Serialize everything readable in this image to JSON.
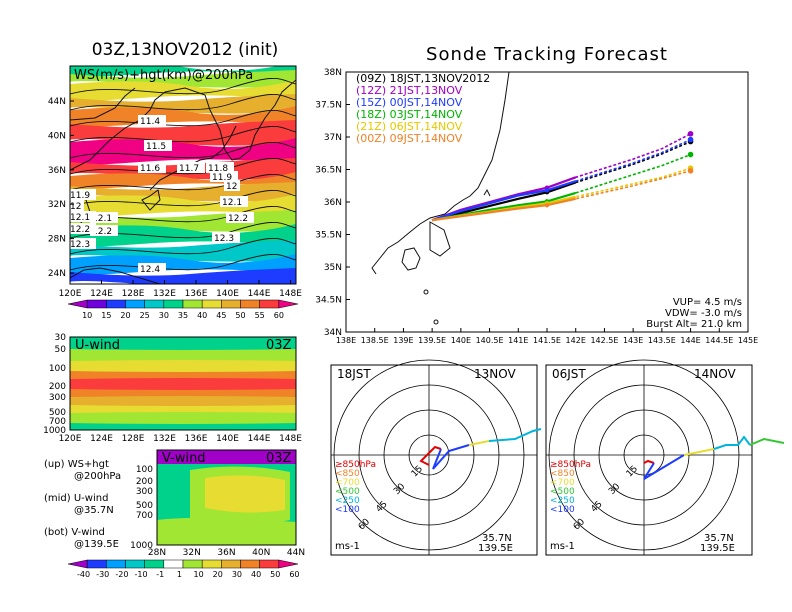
{
  "left": {
    "main_title": "03Z,13NOV2012 (init)",
    "map_label": "WS(m/s)+hgt(km)@200hPa",
    "lat_ticks": [
      "44N",
      "40N",
      "36N",
      "32N",
      "28N",
      "24N"
    ],
    "lon_ticks": [
      "120E",
      "124E",
      "128E",
      "132E",
      "136E",
      "140E",
      "144E",
      "148E"
    ],
    "contour_labels": [
      "11.4",
      "11.5",
      "11.6",
      "11.7",
      "11.8",
      "11.9",
      "12",
      "12.1",
      "12.1",
      "12.2",
      "12.2",
      "12.3",
      "12.4",
      "11.9",
      "12",
      "12.1",
      "12.2",
      "12.3"
    ],
    "ws_colorbar": [
      "10",
      "15",
      "20",
      "25",
      "30",
      "35",
      "40",
      "45",
      "50",
      "55",
      "60"
    ],
    "ws_colors": [
      "#a000c8",
      "#6e00dc",
      "#1e3cff",
      "#00a0ff",
      "#00c8c8",
      "#00d28c",
      "#a0e632",
      "#e6dc32",
      "#e6af2d",
      "#f08228",
      "#fa3c3c",
      "#f00082"
    ],
    "u_wind": {
      "label": "U-wind",
      "time": "03Z",
      "levels": [
        "30",
        "50",
        "100",
        "200",
        "300",
        "500",
        "700",
        "1000"
      ]
    },
    "v_wind": {
      "label": "V-wind",
      "time": "03Z",
      "levels": [
        "100",
        "200",
        "300",
        "500",
        "700",
        "1000"
      ],
      "lat_ticks": [
        "28N",
        "32N",
        "36N",
        "40N",
        "44N"
      ]
    },
    "legend_lines": [
      {
        "key": "(up)",
        "text": "WS+hgt",
        "sub": "@200hPa"
      },
      {
        "key": "(mid)",
        "text": "U-wind",
        "sub": "@35.7N"
      },
      {
        "key": "(bot)",
        "text": "V-wind",
        "sub": "@139.5E"
      }
    ],
    "wind_colorbar": [
      "-40",
      "-30",
      "-20",
      "-10",
      "-1",
      "1",
      "10",
      "20",
      "30",
      "40",
      "50",
      "60"
    ],
    "wind_colors": [
      "#a000c8",
      "#1e3cff",
      "#00a0ff",
      "#00c8c8",
      "#00d28c",
      "#ffffff",
      "#a0e632",
      "#e6dc32",
      "#e6af2d",
      "#f08228",
      "#fa3c3c",
      "#f00082"
    ]
  },
  "right": {
    "title": "Sonde Tracking Forecast",
    "lat_ticks": [
      "38N",
      "37.5N",
      "37N",
      "36.5N",
      "36N",
      "35.5N",
      "35N",
      "34.5N",
      "34N"
    ],
    "lon_ticks": [
      "138E",
      "138.5E",
      "139E",
      "139.5E",
      "140E",
      "140.5E",
      "141E",
      "141.5E",
      "142E",
      "142.5E",
      "143E",
      "143.5E",
      "144E",
      "144.5E",
      "145E"
    ],
    "legend": [
      {
        "utc": "(09Z)",
        "jst": "18JST,13NOV2012",
        "color": "#000000"
      },
      {
        "utc": "(12Z)",
        "jst": "21JST,13NOV",
        "color": "#a000c8"
      },
      {
        "utc": "(15Z)",
        "jst": "00JST,14NOV",
        "color": "#1e3cff"
      },
      {
        "utc": "(18Z)",
        "jst": "03JST,14NOV",
        "color": "#00b400"
      },
      {
        "utc": "(21Z)",
        "jst": "06JST,14NOV",
        "color": "#e6c800"
      },
      {
        "utc": "(00Z)",
        "jst": "09JST,14NOV",
        "color": "#f08228"
      }
    ],
    "params": [
      "VUP=  4.5 m/s",
      "VDW= -3.0 m/s",
      "Burst Alt= 21.0 km"
    ]
  },
  "hodographs": [
    {
      "time": "18JST",
      "date": "13NOV",
      "loc1": "35.7N",
      "loc2": "139.5E",
      "unit": "ms-1",
      "ring_labels": [
        "15",
        "30",
        "45",
        "60"
      ]
    },
    {
      "time": "06JST",
      "date": "14NOV",
      "loc1": "35.7N",
      "loc2": "139.5E",
      "unit": "ms-1",
      "ring_labels": [
        "15",
        "30",
        "45",
        "60"
      ]
    }
  ],
  "hodo_legend": [
    {
      "text": "≥850hPa",
      "color": "#e60000"
    },
    {
      "text": "<850",
      "color": "#f08228"
    },
    {
      "text": "<700",
      "color": "#e6dc32"
    },
    {
      "text": "<500",
      "color": "#32c832"
    },
    {
      "text": "<250",
      "color": "#00b4dc"
    },
    {
      "text": "<100",
      "color": "#1e3cff"
    }
  ],
  "chart_data": [
    {
      "type": "line",
      "title": "Sonde Tracking Forecast",
      "xlabel": "",
      "ylabel": "",
      "xlim": [
        138,
        145
      ],
      "ylim": [
        34,
        38
      ],
      "grid": false,
      "legend_position": "top-left",
      "series": [
        {
          "name": "(09Z) 18JST,13NOV2012",
          "color": "#000000",
          "x": [
            139.5,
            140.0,
            140.5,
            141.0,
            141.5,
            142.0,
            142.5,
            143.0,
            143.5,
            144.0
          ],
          "y": [
            35.72,
            35.83,
            35.94,
            36.05,
            36.15,
            36.3,
            36.44,
            36.58,
            36.74,
            36.93
          ]
        },
        {
          "name": "(12Z) 21JST,13NOV",
          "color": "#a000c8",
          "x": [
            139.5,
            140.0,
            140.5,
            141.0,
            141.5,
            142.0,
            142.5,
            143.0,
            143.5,
            144.0
          ],
          "y": [
            35.72,
            35.88,
            36.0,
            36.12,
            36.22,
            36.38,
            36.52,
            36.66,
            36.82,
            37.05
          ]
        },
        {
          "name": "(15Z) 00JST,14NOV",
          "color": "#1e3cff",
          "x": [
            139.5,
            140.0,
            140.5,
            141.0,
            141.5,
            142.0,
            142.5,
            143.0,
            143.5,
            144.0
          ],
          "y": [
            35.72,
            35.86,
            35.98,
            36.1,
            36.18,
            36.32,
            36.46,
            36.6,
            36.76,
            36.96
          ]
        },
        {
          "name": "(18Z) 03JST,14NOV",
          "color": "#00b400",
          "x": [
            139.5,
            140.0,
            140.5,
            141.0,
            141.5,
            142.0,
            142.5,
            143.0,
            143.5,
            144.0
          ],
          "y": [
            35.72,
            35.8,
            35.88,
            35.95,
            36.01,
            36.14,
            36.28,
            36.42,
            36.56,
            36.73
          ]
        },
        {
          "name": "(21Z) 06JST,14NOV",
          "color": "#e6c800",
          "x": [
            139.5,
            140.0,
            140.5,
            141.0,
            141.5,
            142.0,
            142.5,
            143.0,
            143.5,
            144.0
          ],
          "y": [
            35.72,
            35.79,
            35.85,
            35.92,
            35.98,
            36.08,
            36.18,
            36.28,
            36.38,
            36.52
          ]
        },
        {
          "name": "(00Z) 09JST,14NOV",
          "color": "#f08228",
          "x": [
            139.5,
            140.0,
            140.5,
            141.0,
            141.5,
            142.0,
            142.5,
            143.0,
            143.5,
            144.0
          ],
          "y": [
            35.72,
            35.78,
            35.84,
            35.9,
            35.95,
            36.05,
            36.15,
            36.25,
            36.36,
            36.48
          ]
        }
      ]
    }
  ]
}
